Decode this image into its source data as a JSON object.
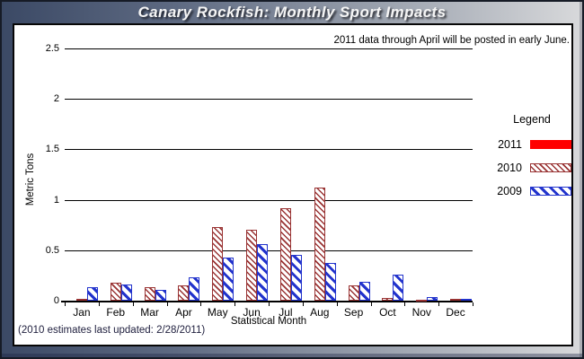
{
  "window": {
    "title": "Canary Rockfish: Monthly Sport Impacts"
  },
  "notes": {
    "top_right": "2011 data through April will be posted in early June.",
    "bottom_left": "(2010 estimates last updated: 2/28/2011)"
  },
  "colors": {
    "solid_red": "#ff0000",
    "brick_red": "#993333",
    "blue": "#2233cc"
  },
  "chart_data": {
    "type": "bar",
    "title": "Canary Rockfish: Monthly Sport Impacts",
    "xlabel": "Statistical Month",
    "ylabel": "Metric Tons",
    "ylim": [
      0,
      2.5
    ],
    "ytick_labels": [
      "0",
      "0.5",
      "1",
      "1.5",
      "2",
      "2.5"
    ],
    "grid": "horizontal",
    "legend_title": "Legend",
    "legend_position": "right",
    "categories": [
      "Jan",
      "Feb",
      "Mar",
      "Apr",
      "May",
      "Jun",
      "Jul",
      "Aug",
      "Sep",
      "Oct",
      "Nov",
      "Dec"
    ],
    "series": [
      {
        "name": "2011",
        "style": "solid",
        "color": "#ff0000",
        "values": [
          0,
          0,
          0,
          0,
          0,
          0,
          0,
          0,
          0,
          0,
          0,
          0
        ]
      },
      {
        "name": "2010",
        "style": "hatch-thin",
        "color": "#993333",
        "values": [
          0.02,
          0.18,
          0.13,
          0.15,
          0.73,
          0.7,
          0.92,
          1.12,
          0.15,
          0.03,
          0.01,
          0.02
        ]
      },
      {
        "name": "2009",
        "style": "hatch-thick",
        "color": "#2233cc",
        "values": [
          0.13,
          0.16,
          0.11,
          0.23,
          0.43,
          0.56,
          0.45,
          0.37,
          0.19,
          0.26,
          0.04,
          0.02
        ]
      }
    ]
  }
}
